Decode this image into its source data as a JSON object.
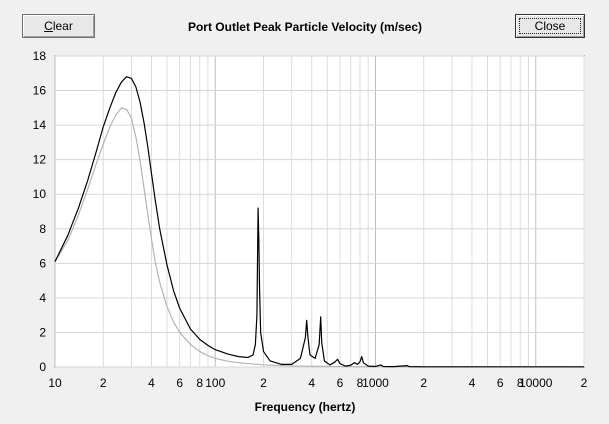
{
  "window": {
    "clear_label": "Clear",
    "clear_accel": "C",
    "clear_rest": "lear",
    "close_label": "Close"
  },
  "chart_data": {
    "type": "line",
    "title": "Port Outlet Peak Particle Velocity (m/sec)",
    "xlabel": "Frequency (hertz)",
    "ylabel": "",
    "x_scale": "log",
    "xlim": [
      10,
      20000
    ],
    "ylim": [
      0,
      18
    ],
    "grid": true,
    "y_ticks": [
      "0",
      "2",
      "4",
      "6",
      "8",
      "10",
      "12",
      "14",
      "16",
      "18"
    ],
    "x_ticks": [
      {
        "value": 10,
        "label": "10"
      },
      {
        "value": 20,
        "label": "2"
      },
      {
        "value": 40,
        "label": "4"
      },
      {
        "value": 60,
        "label": "6"
      },
      {
        "value": 80,
        "label": "8"
      },
      {
        "value": 100,
        "label": "100"
      },
      {
        "value": 200,
        "label": "2"
      },
      {
        "value": 400,
        "label": "4"
      },
      {
        "value": 600,
        "label": "6"
      },
      {
        "value": 800,
        "label": "8"
      },
      {
        "value": 1000,
        "label": "1000"
      },
      {
        "value": 2000,
        "label": "2"
      },
      {
        "value": 4000,
        "label": "4"
      },
      {
        "value": 6000,
        "label": "6"
      },
      {
        "value": 8000,
        "label": "8"
      },
      {
        "value": 10000,
        "label": "10000"
      },
      {
        "value": 20000,
        "label": "2"
      }
    ],
    "series": [
      {
        "color": "#000000",
        "points": [
          [
            10,
            6.1
          ],
          [
            12,
            7.6
          ],
          [
            14,
            9.2
          ],
          [
            16,
            10.8
          ],
          [
            18,
            12.4
          ],
          [
            20,
            13.9
          ],
          [
            22,
            15.0
          ],
          [
            24,
            15.9
          ],
          [
            26,
            16.5
          ],
          [
            28,
            16.8
          ],
          [
            30,
            16.7
          ],
          [
            32,
            16.2
          ],
          [
            34,
            15.3
          ],
          [
            36,
            14.1
          ],
          [
            38,
            12.7
          ],
          [
            40,
            11.2
          ],
          [
            42,
            9.8
          ],
          [
            45,
            8.0
          ],
          [
            50,
            5.9
          ],
          [
            55,
            4.4
          ],
          [
            60,
            3.4
          ],
          [
            70,
            2.2
          ],
          [
            80,
            1.6
          ],
          [
            90,
            1.25
          ],
          [
            100,
            1.0
          ],
          [
            120,
            0.75
          ],
          [
            140,
            0.6
          ],
          [
            160,
            0.55
          ],
          [
            172,
            0.7
          ],
          [
            178,
            1.3
          ],
          [
            182,
            3.0
          ],
          [
            185,
            9.2
          ],
          [
            187,
            7.4
          ],
          [
            189,
            4.5
          ],
          [
            192,
            2.0
          ],
          [
            200,
            0.9
          ],
          [
            220,
            0.35
          ],
          [
            260,
            0.15
          ],
          [
            300,
            0.15
          ],
          [
            340,
            0.5
          ],
          [
            365,
            1.7
          ],
          [
            372,
            2.7
          ],
          [
            378,
            1.8
          ],
          [
            390,
            0.7
          ],
          [
            420,
            0.5
          ],
          [
            445,
            1.3
          ],
          [
            455,
            2.9
          ],
          [
            462,
            1.4
          ],
          [
            480,
            0.35
          ],
          [
            520,
            0.12
          ],
          [
            560,
            0.3
          ],
          [
            580,
            0.45
          ],
          [
            600,
            0.2
          ],
          [
            650,
            0.05
          ],
          [
            700,
            0.1
          ],
          [
            740,
            0.25
          ],
          [
            770,
            0.15
          ],
          [
            800,
            0.3
          ],
          [
            820,
            0.6
          ],
          [
            840,
            0.25
          ],
          [
            900,
            0.05
          ],
          [
            1000,
            0.03
          ],
          [
            1080,
            0.12
          ],
          [
            1120,
            0.03
          ],
          [
            1300,
            0.02
          ],
          [
            1580,
            0.08
          ],
          [
            1620,
            0.02
          ],
          [
            2000,
            0.01
          ],
          [
            5000,
            0.01
          ],
          [
            20000,
            0.01
          ]
        ]
      },
      {
        "color": "#b4b4b4",
        "points": [
          [
            10,
            6.1
          ],
          [
            12,
            7.3
          ],
          [
            14,
            8.8
          ],
          [
            16,
            10.3
          ],
          [
            18,
            11.7
          ],
          [
            20,
            12.9
          ],
          [
            22,
            13.9
          ],
          [
            24,
            14.6
          ],
          [
            26,
            15.0
          ],
          [
            28,
            14.9
          ],
          [
            30,
            14.4
          ],
          [
            32,
            13.3
          ],
          [
            34,
            11.9
          ],
          [
            36,
            10.3
          ],
          [
            38,
            8.8
          ],
          [
            40,
            7.4
          ],
          [
            42,
            6.2
          ],
          [
            45,
            4.9
          ],
          [
            50,
            3.5
          ],
          [
            55,
            2.6
          ],
          [
            60,
            2.0
          ],
          [
            70,
            1.3
          ],
          [
            80,
            0.9
          ],
          [
            90,
            0.65
          ],
          [
            100,
            0.5
          ],
          [
            120,
            0.33
          ],
          [
            140,
            0.25
          ],
          [
            160,
            0.2
          ],
          [
            200,
            0.12
          ],
          [
            300,
            0.06
          ],
          [
            500,
            0.03
          ],
          [
            1000,
            0.01
          ],
          [
            20000,
            0.0
          ]
        ]
      }
    ]
  }
}
